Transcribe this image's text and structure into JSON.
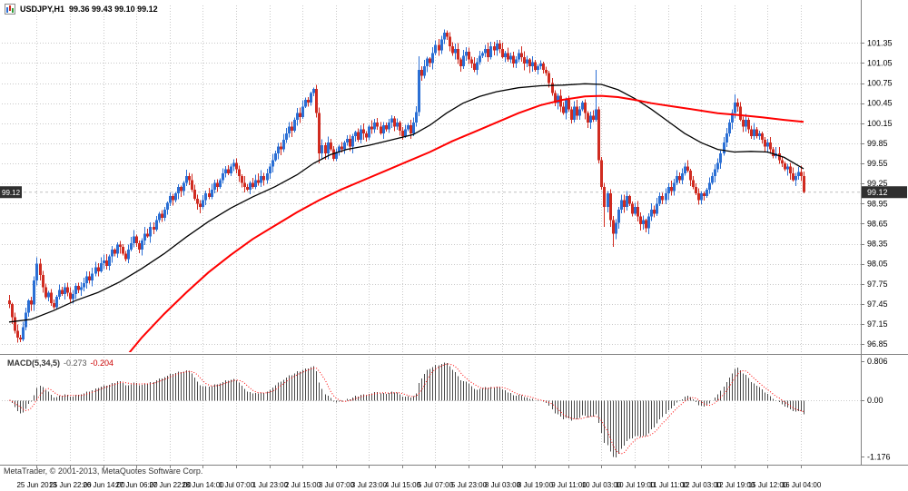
{
  "window": {
    "title": "USDJPY,H1",
    "ohlc_label": "99.36 99.43 99.10 99.12",
    "copyright": "MetaTrader, © 2001-2013, MetaQuotes Software Corp."
  },
  "chart_data": {
    "type": "candlestick",
    "symbol": "USDJPY",
    "timeframe": "H1",
    "current": {
      "open": 99.36,
      "high": 99.43,
      "low": 99.1,
      "close": 99.12,
      "bid": 99.12,
      "bid_label": "99.12"
    },
    "price_axis": {
      "ticks": [
        "101.35",
        "101.05",
        "100.75",
        "100.45",
        "100.15",
        "99.85",
        "99.55",
        "99.25",
        "98.95",
        "98.65",
        "98.35",
        "98.05",
        "97.75",
        "97.45",
        "97.15",
        "96.85"
      ]
    },
    "time_axis": {
      "labels": [
        "25 Jun 2013",
        "25 Jun 22:00",
        "26 Jun 14:00",
        "27 Jun 06:00",
        "27 Jun 22:00",
        "28 Jun 14:00",
        "1 Jul 07:00",
        "1 Jul 23:00",
        "2 Jul 15:00",
        "3 Jul 07:00",
        "3 Jul 23:00",
        "4 Jul 15:00",
        "5 Jul 07:00",
        "5 Jul 23:00",
        "8 Jul 03:00",
        "8 Jul 19:00",
        "9 Jul 11:00",
        "10 Jul 03:00",
        "10 Jul 19:00",
        "11 Jul 11:00",
        "12 Jul 03:00",
        "12 Jul 19:00",
        "15 Jul 12:00",
        "16 Jul 04:00"
      ]
    },
    "first_open": 97.5,
    "closes": [
      97.45,
      97.25,
      97.05,
      96.95,
      96.92,
      97.1,
      97.32,
      97.5,
      97.44,
      97.8,
      98.05,
      97.88,
      97.7,
      97.55,
      97.62,
      97.46,
      97.4,
      97.56,
      97.66,
      97.6,
      97.7,
      97.62,
      97.52,
      97.6,
      97.72,
      97.66,
      97.7,
      97.76,
      97.86,
      97.8,
      97.9,
      98.0,
      97.94,
      98.06,
      98.1,
      98.02,
      98.16,
      98.26,
      98.2,
      98.34,
      98.3,
      98.2,
      98.12,
      98.26,
      98.36,
      98.46,
      98.36,
      98.26,
      98.4,
      98.5,
      98.46,
      98.6,
      98.56,
      98.7,
      98.8,
      98.74,
      98.86,
      98.96,
      99.06,
      99.0,
      99.1,
      99.2,
      99.14,
      99.26,
      99.36,
      99.3,
      99.16,
      99.02,
      98.95,
      98.9,
      99.0,
      99.1,
      99.05,
      99.16,
      99.26,
      99.2,
      99.3,
      99.4,
      99.46,
      99.4,
      99.5,
      99.56,
      99.46,
      99.36,
      99.26,
      99.2,
      99.16,
      99.26,
      99.2,
      99.3,
      99.26,
      99.36,
      99.3,
      99.4,
      99.5,
      99.6,
      99.7,
      99.8,
      99.76,
      99.9,
      100.0,
      100.1,
      100.04,
      100.2,
      100.3,
      100.24,
      100.4,
      100.5,
      100.46,
      100.6,
      100.66,
      100.3,
      99.7,
      99.82,
      99.7,
      99.86,
      99.76,
      99.62,
      99.72,
      99.8,
      99.76,
      99.86,
      99.92,
      99.8,
      99.96,
      100.02,
      99.9,
      100.06,
      100.0,
      99.94,
      100.1,
      100.06,
      100.16,
      100.1,
      100.0,
      100.12,
      100.06,
      100.16,
      100.22,
      100.1,
      100.16,
      100.04,
      99.96,
      100.06,
      100.12,
      100.0,
      100.16,
      100.32,
      100.95,
      100.86,
      101.0,
      101.12,
      101.05,
      101.2,
      101.32,
      101.24,
      101.4,
      101.5,
      101.44,
      101.3,
      101.2,
      101.26,
      101.1,
      101.0,
      101.16,
      101.22,
      101.1,
      101.04,
      100.95,
      101.06,
      101.16,
      101.2,
      101.26,
      101.14,
      101.3,
      101.24,
      101.34,
      101.26,
      101.14,
      101.2,
      101.1,
      101.16,
      101.04,
      101.1,
      101.2,
      101.14,
      101.04,
      101.1,
      101.0,
      101.06,
      100.95,
      101.0,
      101.04,
      100.95,
      100.9,
      100.75,
      100.6,
      100.45,
      100.56,
      100.4,
      100.3,
      100.5,
      100.36,
      100.2,
      100.4,
      100.26,
      100.36,
      100.46,
      100.3,
      100.16,
      100.26,
      100.2,
      100.36,
      99.6,
      99.2,
      98.9,
      99.1,
      98.7,
      98.5,
      98.66,
      98.86,
      99.0,
      98.9,
      99.06,
      98.95,
      98.8,
      98.9,
      98.76,
      98.64,
      98.7,
      98.58,
      98.76,
      98.86,
      98.8,
      98.95,
      99.06,
      99.0,
      99.1,
      99.2,
      99.14,
      99.26,
      99.36,
      99.3,
      99.4,
      99.5,
      99.44,
      99.3,
      99.2,
      99.1,
      99.0,
      99.1,
      99.06,
      99.16,
      99.26,
      99.36,
      99.46,
      99.56,
      99.7,
      99.86,
      100.0,
      100.16,
      100.3,
      100.46,
      100.4,
      100.2,
      100.1,
      100.2,
      100.06,
      99.96,
      100.06,
      99.96,
      100.0,
      99.9,
      99.8,
      99.86,
      99.76,
      99.66,
      99.7,
      99.6,
      99.55,
      99.46,
      99.5,
      99.4,
      99.3,
      99.36,
      99.42,
      99.36,
      99.12
    ],
    "extremes": {
      "4": {
        "low": 96.88
      },
      "10": {
        "high": 98.15
      },
      "110": {
        "high": 100.68
      },
      "112": {
        "low": 99.55
      },
      "148": {
        "high": 101.15
      },
      "157": {
        "high": 101.55
      },
      "212": {
        "high": 100.95
      },
      "215": {
        "low": 98.6
      },
      "218": {
        "low": 98.3
      },
      "230": {
        "low": 98.52
      },
      "262": {
        "high": 100.58
      },
      "287": {
        "high": 99.43,
        "low": 99.1
      }
    },
    "ma_black": {
      "name": "slow-ma-black",
      "points": [
        [
          0,
          97.18
        ],
        [
          8,
          97.22
        ],
        [
          16,
          97.35
        ],
        [
          24,
          97.5
        ],
        [
          32,
          97.62
        ],
        [
          40,
          97.78
        ],
        [
          48,
          97.98
        ],
        [
          56,
          98.2
        ],
        [
          64,
          98.45
        ],
        [
          72,
          98.68
        ],
        [
          80,
          98.88
        ],
        [
          88,
          99.05
        ],
        [
          96,
          99.2
        ],
        [
          104,
          99.38
        ],
        [
          110,
          99.55
        ],
        [
          116,
          99.68
        ],
        [
          122,
          99.76
        ],
        [
          130,
          99.82
        ],
        [
          138,
          99.9
        ],
        [
          146,
          99.98
        ],
        [
          152,
          100.12
        ],
        [
          158,
          100.3
        ],
        [
          164,
          100.45
        ],
        [
          170,
          100.55
        ],
        [
          176,
          100.62
        ],
        [
          184,
          100.68
        ],
        [
          192,
          100.71
        ],
        [
          200,
          100.72
        ],
        [
          208,
          100.74
        ],
        [
          214,
          100.73
        ],
        [
          220,
          100.65
        ],
        [
          226,
          100.52
        ],
        [
          232,
          100.36
        ],
        [
          238,
          100.18
        ],
        [
          244,
          100.0
        ],
        [
          250,
          99.86
        ],
        [
          256,
          99.76
        ],
        [
          262,
          99.72
        ],
        [
          268,
          99.73
        ],
        [
          274,
          99.72
        ],
        [
          280,
          99.64
        ],
        [
          287,
          99.47
        ]
      ]
    },
    "ma_red": {
      "name": "slower-ma-red",
      "points": [
        [
          40,
          96.55
        ],
        [
          48,
          96.95
        ],
        [
          56,
          97.3
        ],
        [
          64,
          97.62
        ],
        [
          72,
          97.92
        ],
        [
          80,
          98.18
        ],
        [
          88,
          98.42
        ],
        [
          96,
          98.62
        ],
        [
          104,
          98.82
        ],
        [
          112,
          99.0
        ],
        [
          120,
          99.16
        ],
        [
          128,
          99.3
        ],
        [
          136,
          99.44
        ],
        [
          144,
          99.58
        ],
        [
          152,
          99.72
        ],
        [
          160,
          99.88
        ],
        [
          168,
          100.02
        ],
        [
          176,
          100.16
        ],
        [
          184,
          100.3
        ],
        [
          192,
          100.42
        ],
        [
          200,
          100.5
        ],
        [
          208,
          100.55
        ],
        [
          214,
          100.56
        ],
        [
          220,
          100.54
        ],
        [
          226,
          100.5
        ],
        [
          232,
          100.45
        ],
        [
          240,
          100.4
        ],
        [
          248,
          100.35
        ],
        [
          256,
          100.3
        ],
        [
          264,
          100.27
        ],
        [
          272,
          100.24
        ],
        [
          280,
          100.2
        ],
        [
          287,
          100.17
        ]
      ]
    },
    "macd": {
      "label": "MACD(5,34,5)",
      "main_value": "-0.273",
      "signal_value": "-0.204",
      "fast": 5,
      "slow": 34,
      "signal": 5,
      "scale_labels": [
        {
          "text": "0.806",
          "value": 0.806
        },
        {
          "text": "0.00",
          "value": 0.0
        },
        {
          "text": "-1.176",
          "value": -1.176
        }
      ]
    },
    "colors": {
      "bull": "#2b6fd4",
      "bear": "#d02b20",
      "ma_black": "#000000",
      "ma_red": "#ff0000",
      "macd_hist": "#4a4a4a",
      "macd_signal": "#ff0000",
      "grid": "#c9c9c9",
      "bg": "#ffffff",
      "axis_line": "#808080",
      "axis_text": "#000000",
      "bid_box_bg": "#2f2f2f",
      "bid_box_text": "#ffffff",
      "bid_line": "#c0c0c0"
    }
  }
}
